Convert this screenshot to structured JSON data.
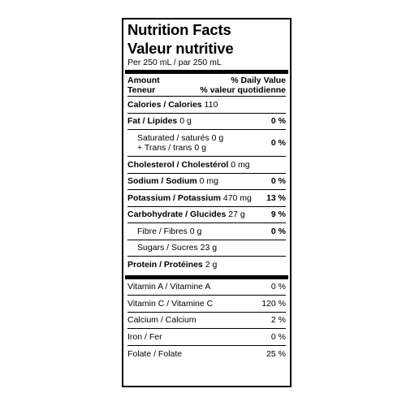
{
  "title_en": "Nutrition Facts",
  "title_fr": "Valeur nutritive",
  "serving": "Per 250 mL / par 250 mL",
  "header": {
    "amount_en": "Amount",
    "amount_fr": "Teneur",
    "dv_en": "% Daily Value",
    "dv_fr": "% valeur quotidienne"
  },
  "nutrients": {
    "calories": {
      "label": "Calories / Calories",
      "amount": "110"
    },
    "fat": {
      "label": "Fat / Lipides",
      "amount": "0 g",
      "dv": "0 %"
    },
    "saturated": {
      "line1": "Saturated / saturés 0 g",
      "line2": "+ Trans / trans 0 g",
      "dv": "0 %"
    },
    "cholesterol": {
      "label": "Cholesterol / Cholestérol",
      "amount": "0 mg"
    },
    "sodium": {
      "label": "Sodium / Sodium",
      "amount": "0 mg",
      "dv": "0 %"
    },
    "potassium": {
      "label": "Potassium / Potassium",
      "amount": "470 mg",
      "dv": "13 %"
    },
    "carbohydrate": {
      "label": "Carbohydrate / Glucides",
      "amount": "27 g",
      "dv": "9 %"
    },
    "fibre": {
      "label": "Fibre / Fibres 0 g",
      "dv": "0 %"
    },
    "sugars": {
      "label": "Sugars / Sucres 23 g"
    },
    "protein": {
      "label": "Protein / Protéines",
      "amount": "2 g"
    }
  },
  "vitamins": {
    "vitamin_a": {
      "label": "Vitamin A / Vitamine A",
      "dv": "0 %"
    },
    "vitamin_c": {
      "label": "Vitamin C / Vitamine C",
      "dv": "120 %"
    },
    "calcium": {
      "label": "Calcium / Calcium",
      "dv": "2 %"
    },
    "iron": {
      "label": "Iron / Fer",
      "dv": "0 %"
    },
    "folate": {
      "label": "Folate / Folate",
      "dv": "25 %"
    }
  }
}
